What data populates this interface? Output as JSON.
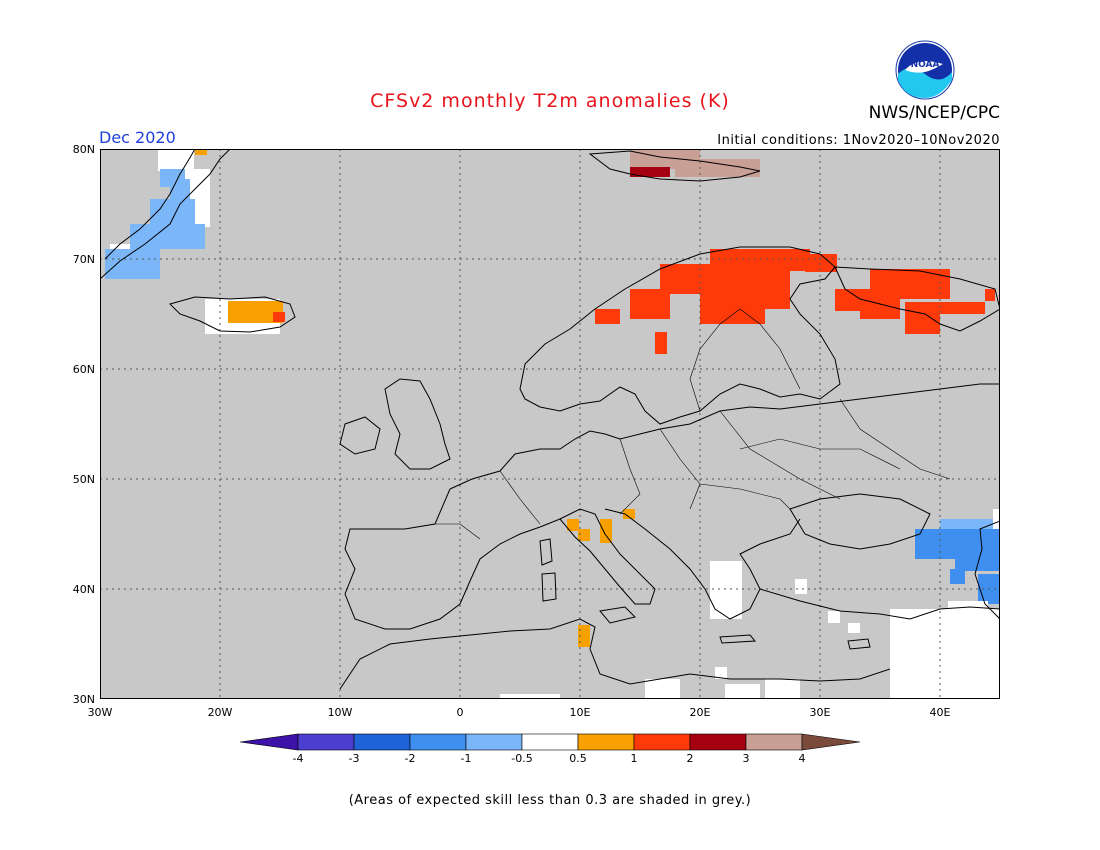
{
  "header": {
    "title": "CFSv2 monthly T2m anomalies (K)",
    "month": "Dec 2020",
    "agency": "NWS/NCEP/CPC",
    "initial_conditions": "Initial conditions: 1Nov2020–10Nov2020",
    "logo_text": "NOAA"
  },
  "map": {
    "lat_labels": [
      "80N",
      "70N",
      "60N",
      "50N",
      "40N",
      "30N"
    ],
    "lon_labels": [
      "30W",
      "20W",
      "10W",
      "0",
      "10E",
      "20E",
      "30E",
      "40E"
    ],
    "lon_range": [
      -30,
      45
    ],
    "lat_range": [
      30,
      80
    ],
    "background_color": "#c8c8c8"
  },
  "colorbar": {
    "ticks": [
      "-4",
      "-3",
      "-2",
      "-1",
      "-0.5",
      "0.5",
      "1",
      "2",
      "3",
      "4"
    ],
    "colors": [
      "#3d12a8",
      "#4c3fd0",
      "#1f63d8",
      "#3f8ff0",
      "#7ab6f8",
      "#ffffff",
      "#f7a000",
      "#ff3a0a",
      "#a50012",
      "#c9a095",
      "#7a4a3a"
    ]
  },
  "footnote": "(Areas of expected skill less than 0.3 are shaded in grey.)"
}
